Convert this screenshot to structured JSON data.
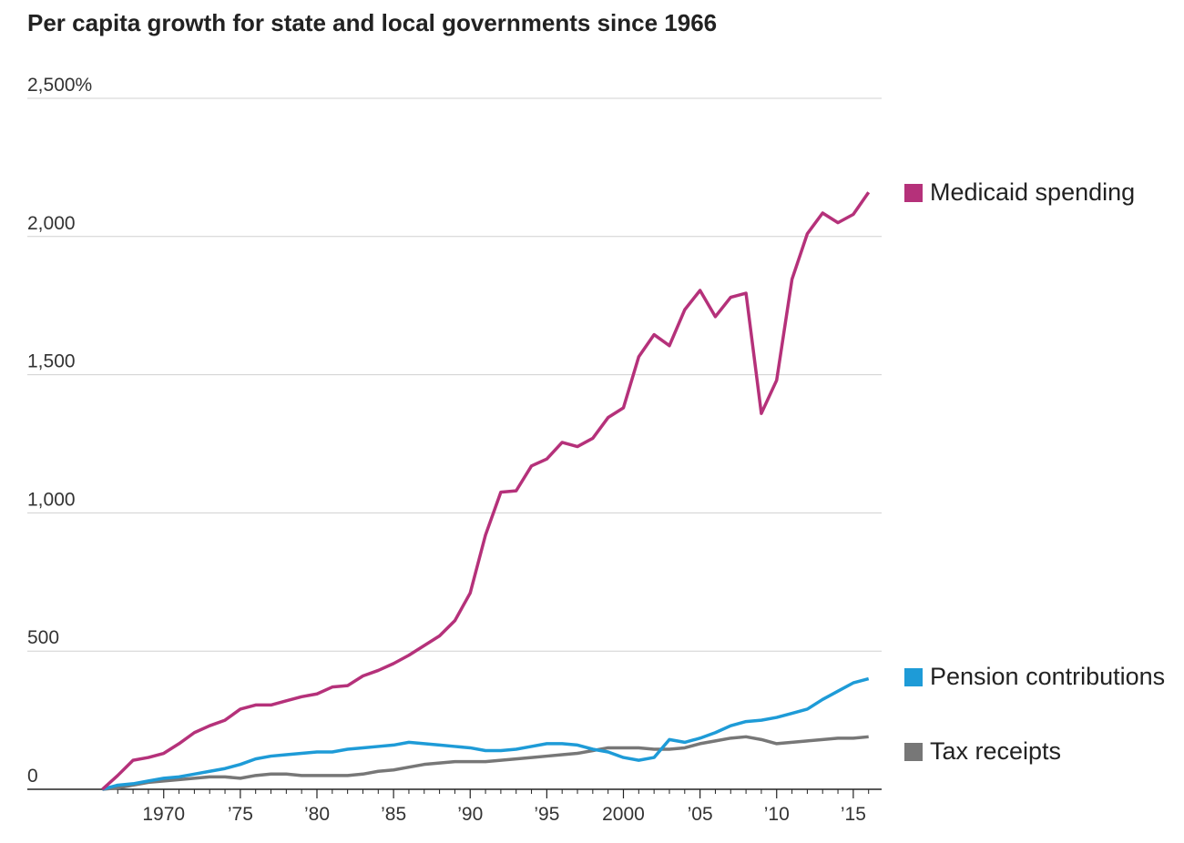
{
  "chart_data": {
    "type": "line",
    "title": "Per capita growth for state and local governments since 1966",
    "x": [
      1966,
      1967,
      1968,
      1969,
      1970,
      1971,
      1972,
      1973,
      1974,
      1975,
      1976,
      1977,
      1978,
      1979,
      1980,
      1981,
      1982,
      1983,
      1984,
      1985,
      1986,
      1987,
      1988,
      1989,
      1990,
      1991,
      1992,
      1993,
      1994,
      1995,
      1996,
      1997,
      1998,
      1999,
      2000,
      2001,
      2002,
      2003,
      2004,
      2005,
      2006,
      2007,
      2008,
      2009,
      2010,
      2011,
      2012,
      2013,
      2014,
      2015,
      2016
    ],
    "series": [
      {
        "name": "Medicaid spending",
        "color": "#b5317a",
        "values": [
          0,
          50,
          105,
          115,
          130,
          165,
          205,
          230,
          250,
          290,
          305,
          305,
          320,
          335,
          345,
          370,
          375,
          410,
          430,
          455,
          485,
          520,
          555,
          610,
          710,
          920,
          1075,
          1080,
          1170,
          1195,
          1255,
          1240,
          1270,
          1345,
          1380,
          1565,
          1645,
          1605,
          1735,
          1805,
          1710,
          1780,
          1795,
          1360,
          1480,
          1845,
          2010,
          2085,
          2050,
          2080,
          2160
        ]
      },
      {
        "name": "Pension contributions",
        "color": "#1e9bd7",
        "values": [
          0,
          15,
          20,
          30,
          40,
          45,
          55,
          65,
          75,
          90,
          110,
          120,
          125,
          130,
          135,
          135,
          145,
          150,
          155,
          160,
          170,
          165,
          160,
          155,
          150,
          140,
          140,
          145,
          155,
          165,
          165,
          160,
          145,
          135,
          115,
          105,
          115,
          180,
          170,
          185,
          205,
          230,
          245,
          250,
          260,
          275,
          290,
          325,
          355,
          385,
          400
        ]
      },
      {
        "name": "Tax receipts",
        "color": "#777777",
        "values": [
          0,
          5,
          15,
          25,
          30,
          35,
          40,
          45,
          45,
          40,
          50,
          55,
          55,
          50,
          50,
          50,
          50,
          55,
          65,
          70,
          80,
          90,
          95,
          100,
          100,
          100,
          105,
          110,
          115,
          120,
          125,
          130,
          140,
          150,
          150,
          150,
          145,
          145,
          150,
          165,
          175,
          185,
          190,
          180,
          165,
          170,
          175,
          180,
          185,
          185,
          190
        ]
      }
    ],
    "xlim": [
      1961.1,
      2016.85
    ],
    "xticks": [
      1970,
      {
        "value": 1975,
        "label": "’75"
      },
      {
        "value": 1980,
        "label": "’80"
      },
      {
        "value": 1985,
        "label": "’85"
      },
      {
        "value": 1990,
        "label": "’90"
      },
      {
        "value": 1995,
        "label": "’95"
      },
      2000,
      {
        "value": 2005,
        "label": "’05"
      },
      {
        "value": 2010,
        "label": "’10"
      },
      {
        "value": 2015,
        "label": "’15"
      }
    ],
    "xminor_ticks": [
      1967,
      1968,
      1969,
      1971,
      1972,
      1973,
      1974,
      1976,
      1977,
      1978,
      1979,
      1981,
      1982,
      1983,
      1984,
      1986,
      1987,
      1988,
      1989,
      1991,
      1992,
      1993,
      1994,
      1996,
      1997,
      1998,
      1999,
      2001,
      2002,
      2003,
      2004,
      2006,
      2007,
      2008,
      2009,
      2011,
      2012,
      2013,
      2014,
      2016
    ],
    "ylim": [
      0,
      2500
    ],
    "yticks": [
      0,
      500,
      {
        "value": 1000,
        "label": "1,000"
      },
      {
        "value": 1500,
        "label": "1,500"
      },
      {
        "value": 2000,
        "label": "2,000"
      },
      {
        "value": 2500,
        "label": "2,500%"
      }
    ],
    "grid": true
  }
}
